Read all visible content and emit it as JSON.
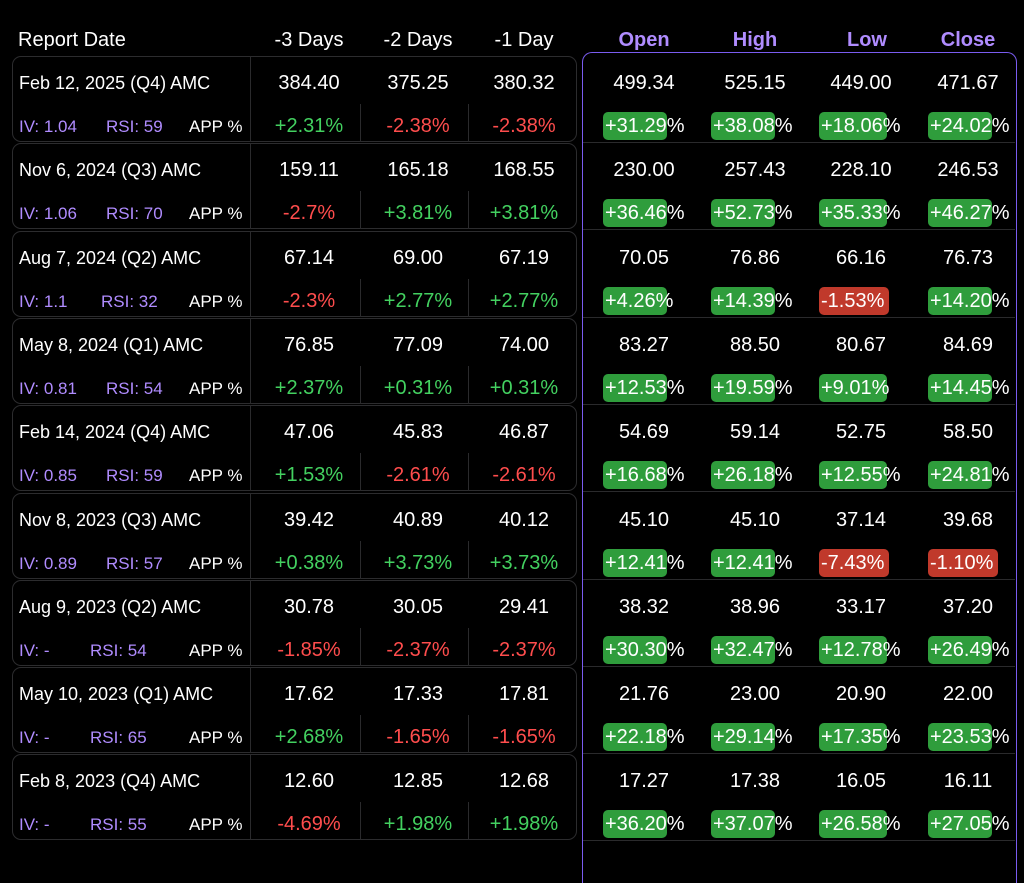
{
  "header": {
    "report_date": "Report Date",
    "minus3": "-3 Days",
    "minus2": "-2 Days",
    "minus1": "-1 Day",
    "open": "Open",
    "high": "High",
    "low": "Low",
    "close": "Close"
  },
  "app_label": "APP %",
  "colors": {
    "accent": "#b08cff",
    "positive": "#43d160",
    "negative": "#ff4d4d",
    "chip_green": "#2f9d3c",
    "chip_red": "#c0392b",
    "border": "#7a5cf0"
  },
  "rows": [
    {
      "date": "Feb 12, 2025 (Q4) AMC",
      "iv": "IV: 1.04",
      "rsi": "RSI: 59",
      "d3": "384.40",
      "d2": "375.25",
      "d1": "380.32",
      "p3": "+2.31%",
      "p2": "-2.38%",
      "p1": "-2.38%",
      "open": "499.34",
      "high": "525.15",
      "low": "449.00",
      "close": "471.67",
      "open_pct": "+31.29%",
      "high_pct": "+38.08%",
      "low_pct": "+18.06%",
      "close_pct": "+24.02%"
    },
    {
      "date": "Nov 6, 2024 (Q3) AMC",
      "iv": "IV: 1.06",
      "rsi": "RSI: 70",
      "d3": "159.11",
      "d2": "165.18",
      "d1": "168.55",
      "p3": "-2.7%",
      "p2": "+3.81%",
      "p1": "+3.81%",
      "open": "230.00",
      "high": "257.43",
      "low": "228.10",
      "close": "246.53",
      "open_pct": "+36.46%",
      "high_pct": "+52.73%",
      "low_pct": "+35.33%",
      "close_pct": "+46.27%"
    },
    {
      "date": "Aug 7, 2024 (Q2) AMC",
      "iv": "IV: 1.1",
      "rsi": "RSI: 32",
      "d3": "67.14",
      "d2": "69.00",
      "d1": "67.19",
      "p3": "-2.3%",
      "p2": "+2.77%",
      "p1": "+2.77%",
      "open": "70.05",
      "high": "76.86",
      "low": "66.16",
      "close": "76.73",
      "open_pct": "+4.26%",
      "high_pct": "+14.39%",
      "low_pct": "-1.53%",
      "close_pct": "+14.20%"
    },
    {
      "date": "May 8, 2024 (Q1) AMC",
      "iv": "IV: 0.81",
      "rsi": "RSI: 54",
      "d3": "76.85",
      "d2": "77.09",
      "d1": "74.00",
      "p3": "+2.37%",
      "p2": "+0.31%",
      "p1": "+0.31%",
      "open": "83.27",
      "high": "88.50",
      "low": "80.67",
      "close": "84.69",
      "open_pct": "+12.53%",
      "high_pct": "+19.59%",
      "low_pct": "+9.01%",
      "close_pct": "+14.45%"
    },
    {
      "date": "Feb 14, 2024 (Q4) AMC",
      "iv": "IV: 0.85",
      "rsi": "RSI: 59",
      "d3": "47.06",
      "d2": "45.83",
      "d1": "46.87",
      "p3": "+1.53%",
      "p2": "-2.61%",
      "p1": "-2.61%",
      "open": "54.69",
      "high": "59.14",
      "low": "52.75",
      "close": "58.50",
      "open_pct": "+16.68%",
      "high_pct": "+26.18%",
      "low_pct": "+12.55%",
      "close_pct": "+24.81%"
    },
    {
      "date": "Nov 8, 2023 (Q3) AMC",
      "iv": "IV: 0.89",
      "rsi": "RSI: 57",
      "d3": "39.42",
      "d2": "40.89",
      "d1": "40.12",
      "p3": "+0.38%",
      "p2": "+3.73%",
      "p1": "+3.73%",
      "open": "45.10",
      "high": "45.10",
      "low": "37.14",
      "close": "39.68",
      "open_pct": "+12.41%",
      "high_pct": "+12.41%",
      "low_pct": "-7.43%",
      "close_pct": "-1.10%"
    },
    {
      "date": "Aug 9, 2023 (Q2) AMC",
      "iv": "IV: -",
      "rsi": "RSI: 54",
      "d3": "30.78",
      "d2": "30.05",
      "d1": "29.41",
      "p3": "-1.85%",
      "p2": "-2.37%",
      "p1": "-2.37%",
      "open": "38.32",
      "high": "38.96",
      "low": "33.17",
      "close": "37.20",
      "open_pct": "+30.30%",
      "high_pct": "+32.47%",
      "low_pct": "+12.78%",
      "close_pct": "+26.49%"
    },
    {
      "date": "May 10, 2023 (Q1) AMC",
      "iv": "IV: -",
      "rsi": "RSI: 65",
      "d3": "17.62",
      "d2": "17.33",
      "d1": "17.81",
      "p3": "+2.68%",
      "p2": "-1.65%",
      "p1": "-1.65%",
      "open": "21.76",
      "high": "23.00",
      "low": "20.90",
      "close": "22.00",
      "open_pct": "+22.18%",
      "high_pct": "+29.14%",
      "low_pct": "+17.35%",
      "close_pct": "+23.53%"
    },
    {
      "date": "Feb 8, 2023 (Q4) AMC",
      "iv": "IV: -",
      "rsi": "RSI: 55",
      "d3": "12.60",
      "d2": "12.85",
      "d1": "12.68",
      "p3": "-4.69%",
      "p2": "+1.98%",
      "p1": "+1.98%",
      "open": "17.27",
      "high": "17.38",
      "low": "16.05",
      "close": "16.11",
      "open_pct": "+36.20%",
      "high_pct": "+37.07%",
      "low_pct": "+26.58%",
      "close_pct": "+27.05%"
    }
  ]
}
